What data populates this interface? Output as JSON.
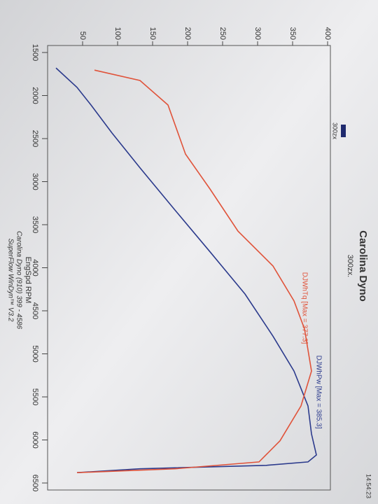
{
  "chart_data": {
    "type": "line",
    "title": "Carolina Dyno",
    "subtitle": "300zx.",
    "x_label": "EngSpd RPM",
    "footer": [
      "Carolina Dyno (910) 399 - 4586",
      "SuperFlow WinDyn™ V3.2"
    ],
    "timestamp": "14:54:23",
    "legend": {
      "label": "300zx",
      "color": "#1f2a6e"
    },
    "xlim": [
      1500,
      6500
    ],
    "xticks": [
      1500,
      2000,
      2500,
      3000,
      3500,
      4000,
      4500,
      5000,
      5500,
      6000,
      6500
    ],
    "ylim": [
      0,
      400
    ],
    "yticks": [
      50,
      100,
      150,
      200,
      250,
      300,
      350,
      400
    ],
    "series": [
      {
        "name": "DJWhPw [Max = 385.3]",
        "color": "#2b3a8c",
        "x": [
          1680,
          1905,
          2110,
          2435,
          2840,
          3330,
          3815,
          4305,
          4795,
          5200,
          5605,
          5930,
          6175,
          6255,
          6295,
          6335,
          6380
        ],
        "values": [
          12,
          42,
          62,
          92,
          132,
          182,
          232,
          282,
          322,
          352,
          372,
          377,
          384,
          372,
          312,
          132,
          42
        ]
      },
      {
        "name": "DJWhTq [Max = 377.3]",
        "color": "#e0533a",
        "x": [
          1705,
          1825,
          2110,
          2680,
          3085,
          3575,
          3980,
          4385,
          4710,
          5200,
          5605,
          6010,
          6255,
          6335,
          6380
        ],
        "values": [
          67,
          132,
          172,
          197,
          232,
          272,
          322,
          352,
          367,
          377,
          362,
          332,
          302,
          182,
          42
        ]
      }
    ]
  }
}
